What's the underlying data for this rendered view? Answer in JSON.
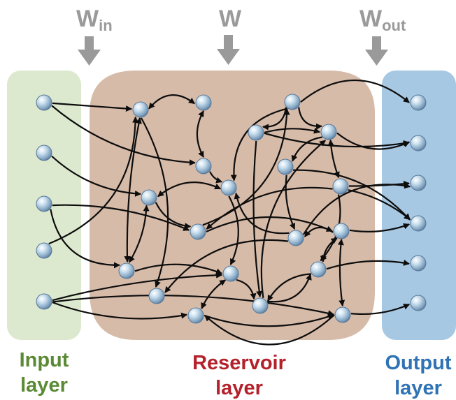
{
  "colors": {
    "input_panel": "#dde9cf",
    "reservoir_panel": "#d7bba9",
    "output_panel": "#a7c8e3",
    "arrow_gray": "#9a9a9a",
    "edge": "#0d0d0d",
    "input_label": "#5a8a34",
    "reservoir_label": "#b3212b",
    "output_label": "#2f73b4",
    "node_fill_light": "#eef6fb",
    "node_fill_dark": "#6b8fb0"
  },
  "weights": {
    "w_in": {
      "base": "W",
      "sub": "in"
    },
    "w": {
      "base": "W",
      "sub": ""
    },
    "w_out": {
      "base": "W",
      "sub": "out"
    }
  },
  "labels": {
    "input": {
      "line1": "Input",
      "line2": "layer"
    },
    "reservoir": {
      "line1": "Reservoir",
      "line2": "layer"
    },
    "output": {
      "line1": "Output",
      "line2": "layer"
    }
  }
}
